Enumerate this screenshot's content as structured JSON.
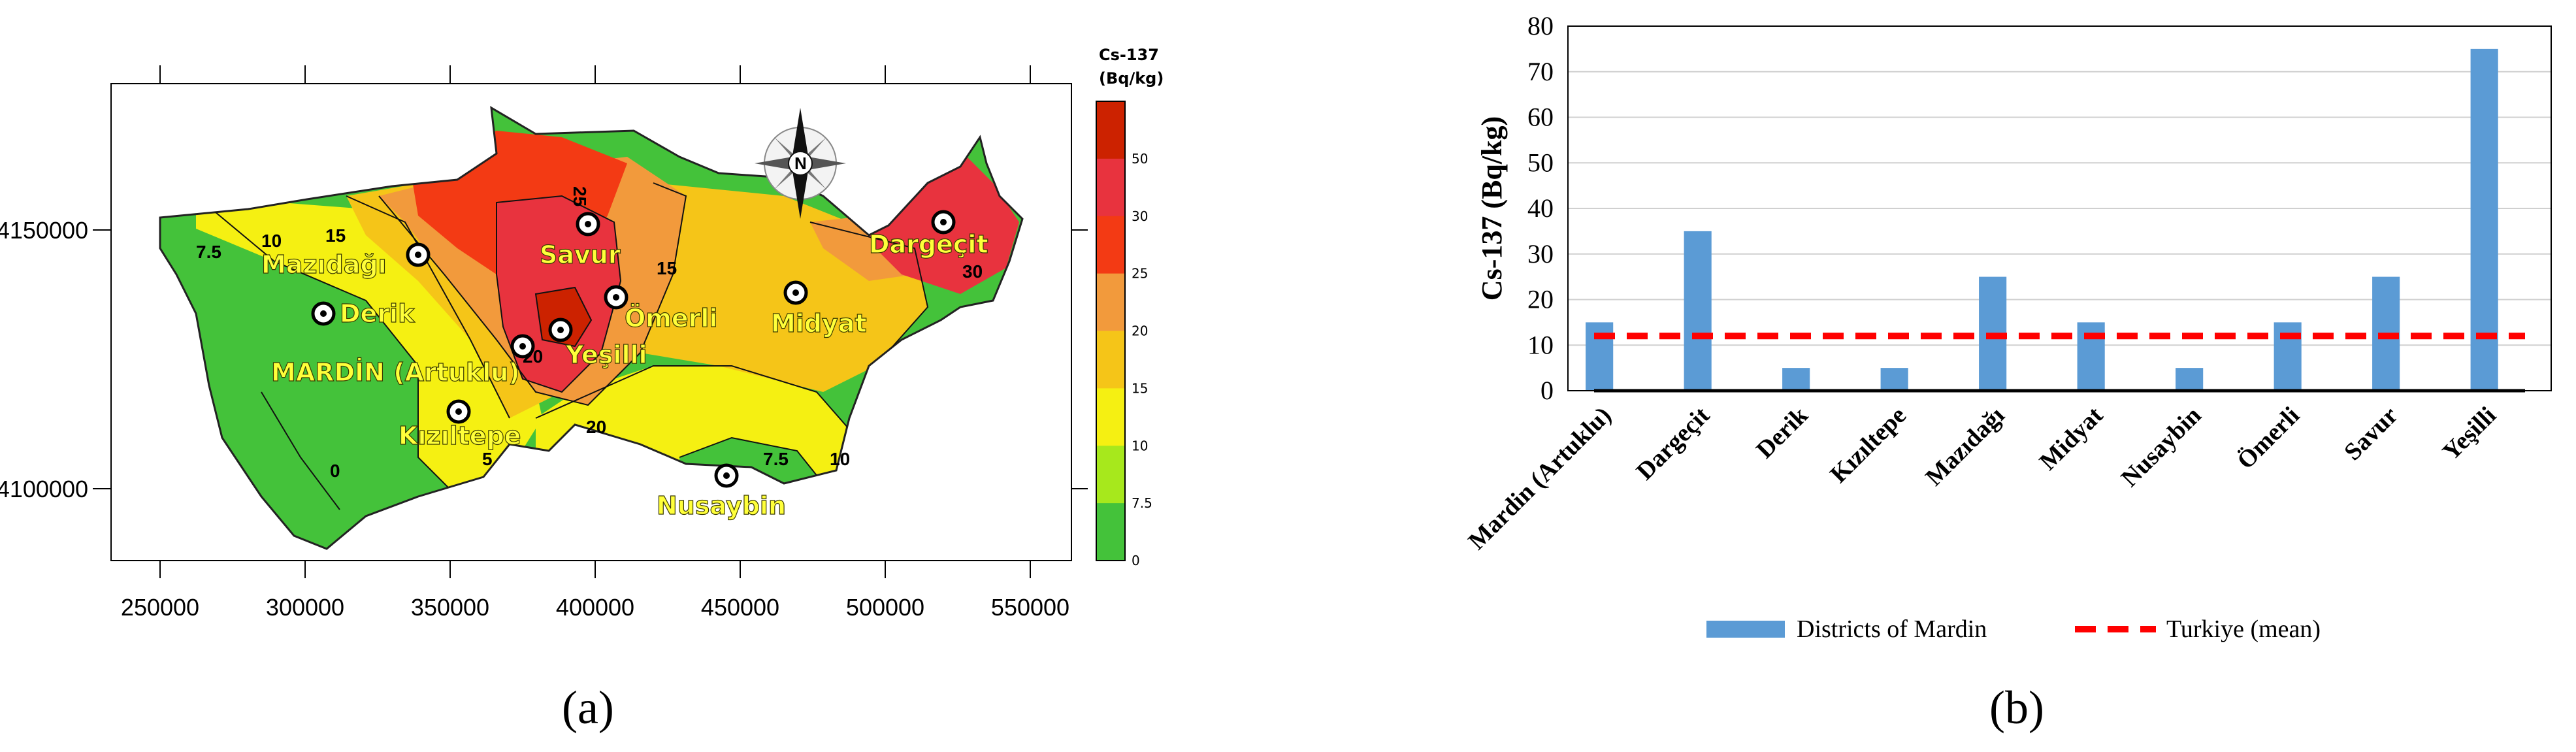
{
  "panels": {
    "a": "(a)",
    "b": "(b)"
  },
  "map": {
    "colorbar": {
      "title_line1": "Cs-137",
      "title_line2": "(Bq/kg)",
      "ticks": [
        "50",
        "30",
        "25",
        "20",
        "15",
        "10",
        "7.5",
        "0"
      ],
      "colors": [
        "#cc2200",
        "#e8333e",
        "#f33a14",
        "#f29a3c",
        "#f5c518",
        "#f5f012",
        "#a7e81c",
        "#44c23a"
      ]
    },
    "x_ticks": [
      "250000",
      "300000",
      "350000",
      "400000",
      "450000",
      "500000",
      "550000"
    ],
    "y_ticks": [
      "4150000",
      "4100000"
    ],
    "districts": [
      "Mazıdağı",
      "Derik",
      "MARDİN (Artuklu)",
      "Kızıltepe",
      "Savur",
      "Ömerli",
      "Yeşilli",
      "Midyat",
      "Dargeçit",
      "Nusaybin"
    ],
    "contour_labels": [
      "7.5",
      "10",
      "15",
      "25",
      "15",
      "20",
      "20",
      "0",
      "5",
      "7.5",
      "10",
      "30"
    ],
    "compass": "N"
  },
  "chart_data": {
    "type": "bar",
    "categories": [
      "Mardin (Artuklu)",
      "Dargeçit",
      "Derik",
      "Kızıltepe",
      "Mazıdağı",
      "Midyat",
      "Nusaybin",
      "Ömerli",
      "Savur",
      "Yeşilli"
    ],
    "series": [
      {
        "name": "Districts of Mardin",
        "values": [
          15,
          35,
          5,
          5,
          25,
          15,
          5,
          15,
          25,
          75
        ],
        "color": "#5b9bd5"
      }
    ],
    "reference_line": {
      "name": "Turkiye (mean)",
      "value": 12,
      "color": "#ff0000"
    },
    "title": "",
    "xlabel": "",
    "ylabel": "Cs-137 (Bq/kg)",
    "ylim": [
      0,
      80
    ],
    "yticks": [
      "0",
      "10",
      "20",
      "30",
      "40",
      "50",
      "60",
      "70",
      "80"
    ],
    "grid": true,
    "legend": "bottom"
  }
}
